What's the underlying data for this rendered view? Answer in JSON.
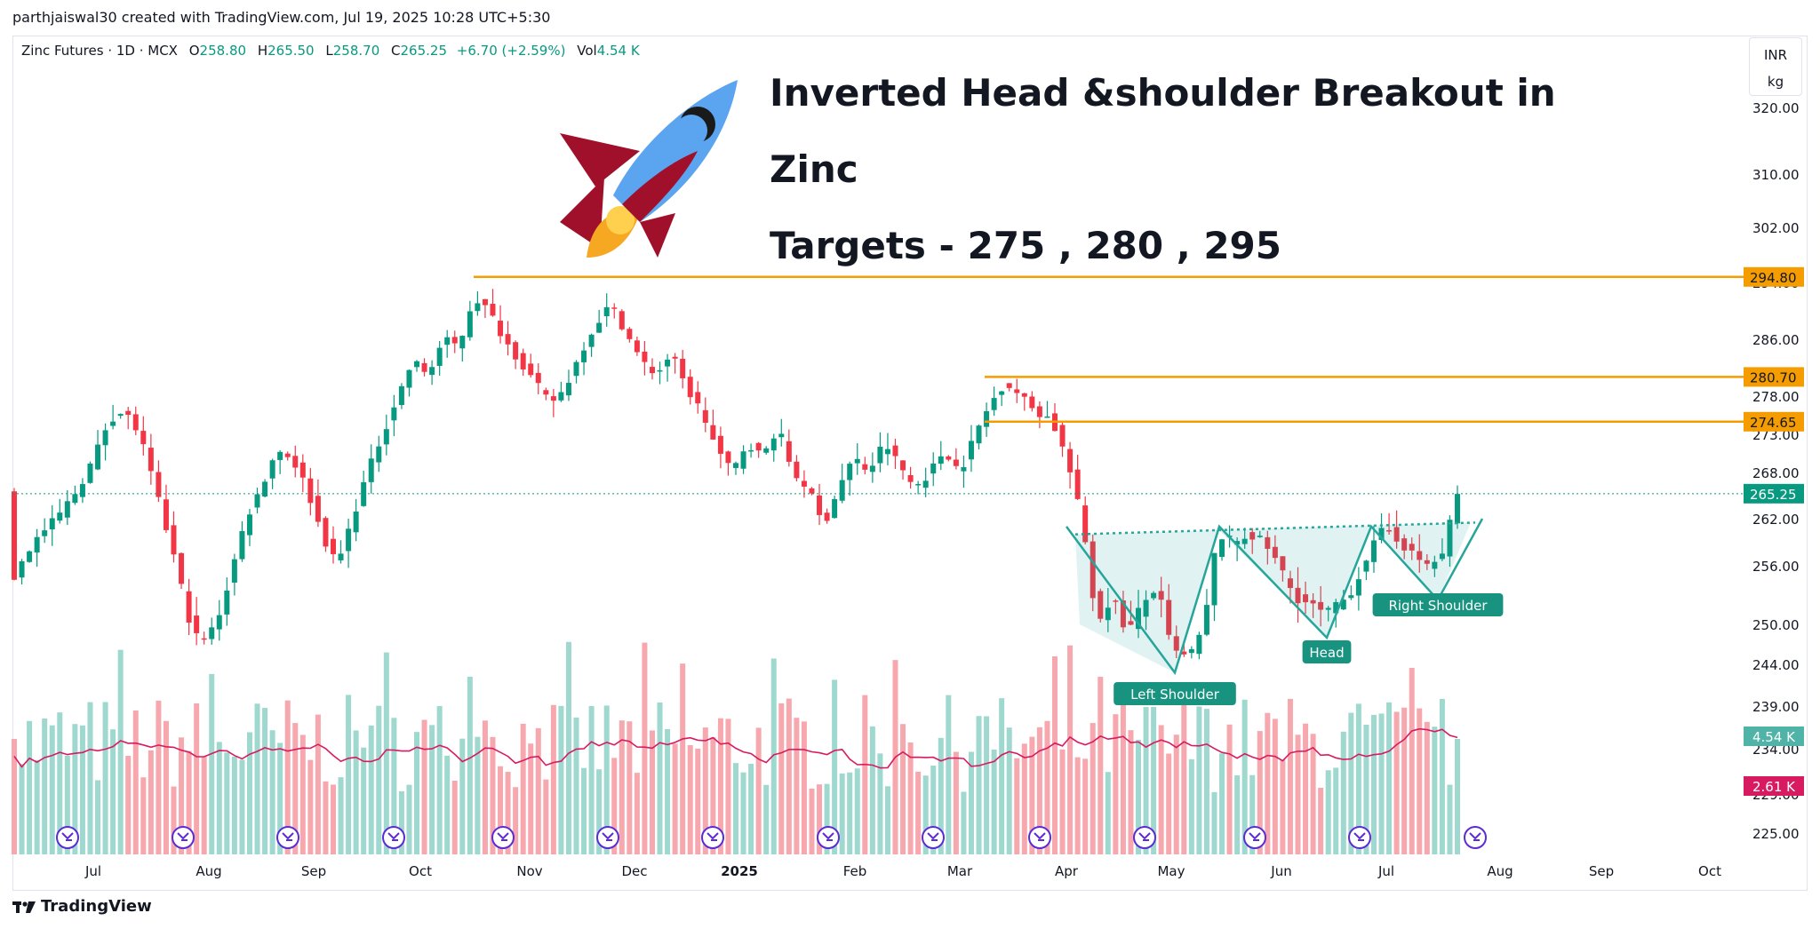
{
  "credit": "parthjaiswal30 created with TradingView.com, Jul 19, 2025 10:28 UTC+5:30",
  "legend": {
    "symbol": "Zinc Futures · 1D · MCX",
    "o_label": "O",
    "o_value": "258.80",
    "h_label": "H",
    "h_value": "265.50",
    "l_label": "L",
    "l_value": "258.70",
    "c_label": "C",
    "c_value": "265.25",
    "change": "+6.70 (+2.59%)",
    "vol_label": "Vol",
    "vol_value": "4.54 K"
  },
  "unit": {
    "currency": "INR",
    "quantity": "kg"
  },
  "headline": {
    "line1": "Inverted Head &shoulder Breakout in",
    "line2": "Zinc",
    "line3": "Targets - 275 , 280 , 295"
  },
  "footer_logo": "TradingView",
  "colors": {
    "up": "#089981",
    "down": "#f23645",
    "level": "#f59c00",
    "pattern": "#26a69a",
    "volume_ma": "#d81b60",
    "event": "#5b2bd6"
  },
  "chart_data": {
    "type": "candlestick",
    "symbol": "Zinc Futures",
    "interval": "1D",
    "exchange": "MCX",
    "price_axis_ticks": [
      320.0,
      310.0,
      302.0,
      294.0,
      286.0,
      278.0,
      273.0,
      268.0,
      262.0,
      256.0,
      250.0,
      244.0,
      239.0,
      234.0,
      229.0,
      225.0
    ],
    "price_axis_labels": [
      "320.00",
      "310.00",
      "302.00",
      "294.00",
      "286.00",
      "278.00",
      "273.00",
      "268.00",
      "262.00",
      "256.00",
      "250.00",
      "244.00",
      "239.00",
      "234.00",
      "229.00",
      "225.00"
    ],
    "time_axis_labels": [
      "Jul",
      "Aug",
      "Sep",
      "Oct",
      "Nov",
      "Dec",
      "2025",
      "Feb",
      "Mar",
      "Apr",
      "May",
      "Jun",
      "Jul",
      "Aug",
      "Sep",
      "Oct"
    ],
    "levels": [
      {
        "price": 294.8,
        "label": "294.80"
      },
      {
        "price": 280.7,
        "label": "280.70"
      },
      {
        "price": 274.65,
        "label": "274.65"
      }
    ],
    "last_price": {
      "price": 265.25,
      "label": "265.25"
    },
    "volume_badges": [
      {
        "label": "4.54 K",
        "kind": "volume"
      },
      {
        "label": "2.61 K",
        "kind": "volume_ma"
      }
    ],
    "pattern": {
      "name": "Inverted Head & Shoulders",
      "labels": [
        "Left Shoulder",
        "Head",
        "Right Shoulder"
      ],
      "shoulder_lows": [
        243.0,
        252.5
      ],
      "head_low": 248.0,
      "neckline": [
        260.0,
        261.5
      ]
    },
    "price_path": [
      [
        0,
        254
      ],
      [
        3,
        259
      ],
      [
        6,
        262
      ],
      [
        9,
        266
      ],
      [
        11,
        270
      ],
      [
        13,
        275
      ],
      [
        15,
        276
      ],
      [
        17,
        273
      ],
      [
        19,
        266
      ],
      [
        21,
        259
      ],
      [
        23,
        252
      ],
      [
        25,
        247
      ],
      [
        27,
        250
      ],
      [
        29,
        255
      ],
      [
        31,
        262
      ],
      [
        33,
        266
      ],
      [
        35,
        271
      ],
      [
        37,
        270
      ],
      [
        39,
        266
      ],
      [
        41,
        260
      ],
      [
        43,
        256
      ],
      [
        45,
        262
      ],
      [
        47,
        268
      ],
      [
        49,
        273
      ],
      [
        51,
        278
      ],
      [
        53,
        283
      ],
      [
        55,
        281
      ],
      [
        57,
        286
      ],
      [
        59,
        285
      ],
      [
        61,
        292
      ],
      [
        63,
        290
      ],
      [
        65,
        286
      ],
      [
        67,
        283
      ],
      [
        69,
        280
      ],
      [
        71,
        277
      ],
      [
        73,
        279
      ],
      [
        75,
        284
      ],
      [
        77,
        288
      ],
      [
        79,
        291
      ],
      [
        81,
        287
      ],
      [
        83,
        283
      ],
      [
        85,
        281
      ],
      [
        87,
        284
      ],
      [
        89,
        279
      ],
      [
        91,
        276
      ],
      [
        93,
        271
      ],
      [
        95,
        268
      ],
      [
        97,
        272
      ],
      [
        99,
        270
      ],
      [
        101,
        274
      ],
      [
        103,
        268
      ],
      [
        105,
        266
      ],
      [
        107,
        261
      ],
      [
        109,
        266
      ],
      [
        111,
        270
      ],
      [
        113,
        268
      ],
      [
        115,
        272
      ],
      [
        117,
        269
      ],
      [
        119,
        266
      ],
      [
        121,
        268
      ],
      [
        123,
        271
      ],
      [
        125,
        268
      ],
      [
        127,
        273
      ],
      [
        129,
        277
      ],
      [
        131,
        280
      ],
      [
        133,
        278
      ],
      [
        135,
        276
      ],
      [
        137,
        275
      ],
      [
        139,
        270
      ],
      [
        141,
        262
      ],
      [
        143,
        250
      ],
      [
        145,
        253
      ],
      [
        147,
        249
      ],
      [
        149,
        252
      ],
      [
        151,
        254
      ],
      [
        153,
        246
      ],
      [
        155,
        245
      ],
      [
        157,
        249
      ],
      [
        159,
        260
      ],
      [
        161,
        259
      ],
      [
        163,
        260
      ],
      [
        165,
        259
      ],
      [
        167,
        256
      ],
      [
        169,
        253
      ],
      [
        171,
        252
      ],
      [
        173,
        251
      ],
      [
        175,
        252
      ],
      [
        177,
        254
      ],
      [
        179,
        258
      ],
      [
        181,
        261
      ],
      [
        183,
        259
      ],
      [
        185,
        257
      ],
      [
        187,
        256
      ],
      [
        189,
        258
      ],
      [
        190,
        265
      ]
    ]
  }
}
